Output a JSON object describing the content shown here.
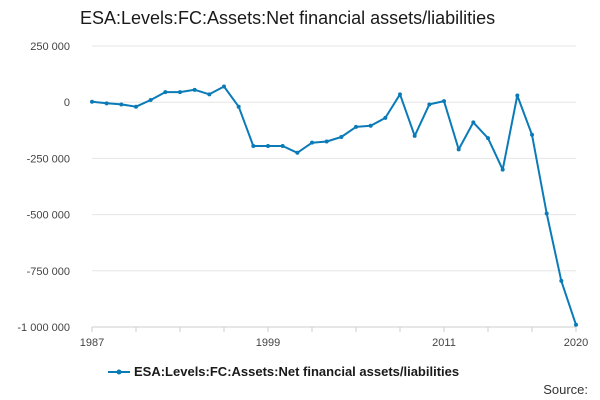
{
  "chart_data": {
    "type": "line",
    "title": "ESA:Levels:FC:Assets:Net financial assets/liabilities",
    "xlabel": "",
    "ylabel": "",
    "source_label": "Source:",
    "xlim": [
      1987,
      2020
    ],
    "ylim": [
      -1000000,
      250000
    ],
    "grid": true,
    "legend_position": "bottom",
    "x_ticks": [
      1987,
      1999,
      2011,
      2020
    ],
    "x_tick_labels": [
      "1987",
      "1999",
      "2011",
      "2020"
    ],
    "y_ticks": [
      250000,
      0,
      -250000,
      -500000,
      -750000,
      -1000000
    ],
    "y_tick_labels": [
      "250 000",
      "0",
      "-250 000",
      "-500 000",
      "-750 000",
      "-1 000 000"
    ],
    "series": [
      {
        "name": "ESA:Levels:FC:Assets:Net financial assets/liabilities",
        "color": "#0b7bb8",
        "x": [
          1987,
          1988,
          1989,
          1990,
          1991,
          1992,
          1993,
          1994,
          1995,
          1996,
          1997,
          1998,
          1999,
          2000,
          2001,
          2002,
          2003,
          2004,
          2005,
          2006,
          2007,
          2008,
          2009,
          2010,
          2011,
          2012,
          2013,
          2014,
          2015,
          2016,
          2017,
          2018,
          2019,
          2020
        ],
        "values": [
          2000,
          -5000,
          -10000,
          -20000,
          10000,
          45000,
          45000,
          55000,
          35000,
          70000,
          -20000,
          -195000,
          -195000,
          -195000,
          -225000,
          -180000,
          -175000,
          -155000,
          -110000,
          -105000,
          -70000,
          35000,
          -150000,
          -10000,
          5000,
          -210000,
          -90000,
          -160000,
          -300000,
          30000,
          -145000,
          -495000,
          -795000,
          -990000
        ]
      }
    ]
  }
}
